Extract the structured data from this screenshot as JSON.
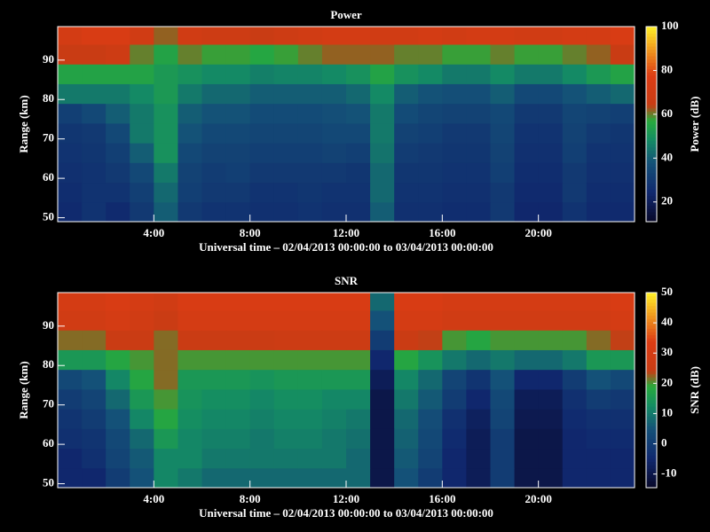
{
  "chart_data": [
    {
      "type": "heatmap",
      "title": "Power",
      "xlabel": "Universal time – 02/04/2013 00:00:00 to 03/04/2013 00:00:00",
      "ylabel": "Range (km)",
      "colorbar_label": "Power (dB)",
      "x": [
        0.5,
        1.5,
        2.5,
        3.5,
        4.5,
        5.5,
        6.5,
        7.5,
        8.5,
        9.5,
        10.5,
        11.5,
        12.5,
        13.5,
        14.5,
        15.5,
        16.5,
        17.5,
        18.5,
        19.5,
        20.5,
        21.5,
        22.5,
        23.5
      ],
      "y": [
        51.5,
        56.5,
        61.5,
        66.5,
        71.5,
        76.5,
        81.5,
        86.5,
        91.5,
        96.5
      ],
      "values": [
        [
          25,
          28,
          25,
          30,
          40,
          30,
          28,
          28,
          27,
          27,
          28,
          27,
          27,
          40,
          27,
          27,
          26,
          26,
          30,
          24,
          24,
          28,
          25,
          25
        ],
        [
          26,
          28,
          28,
          32,
          42,
          32,
          30,
          30,
          28,
          28,
          29,
          28,
          28,
          42,
          28,
          28,
          27,
          27,
          30,
          25,
          25,
          30,
          26,
          26
        ],
        [
          27,
          28,
          30,
          35,
          45,
          33,
          31,
          32,
          30,
          30,
          30,
          30,
          29,
          42,
          29,
          29,
          28,
          28,
          32,
          26,
          26,
          30,
          27,
          27
        ],
        [
          28,
          29,
          32,
          40,
          50,
          35,
          33,
          33,
          32,
          32,
          32,
          33,
          32,
          44,
          31,
          30,
          29,
          29,
          33,
          27,
          27,
          32,
          28,
          28
        ],
        [
          29,
          30,
          35,
          45,
          50,
          38,
          35,
          35,
          34,
          34,
          34,
          35,
          35,
          45,
          33,
          32,
          30,
          30,
          34,
          28,
          28,
          33,
          30,
          29
        ],
        [
          32,
          35,
          40,
          45,
          50,
          40,
          38,
          38,
          36,
          36,
          36,
          37,
          38,
          45,
          36,
          34,
          33,
          33,
          35,
          30,
          30,
          34,
          33,
          32
        ],
        [
          45,
          45,
          45,
          48,
          52,
          45,
          42,
          42,
          40,
          40,
          40,
          40,
          42,
          48,
          40,
          38,
          37,
          37,
          40,
          35,
          35,
          38,
          40,
          42
        ],
        [
          55,
          55,
          55,
          55,
          52,
          50,
          48,
          48,
          46,
          47,
          47,
          48,
          50,
          55,
          50,
          48,
          45,
          45,
          48,
          45,
          45,
          48,
          52,
          55
        ],
        [
          65,
          65,
          68,
          60,
          55,
          60,
          58,
          58,
          56,
          58,
          60,
          62,
          62,
          62,
          60,
          60,
          58,
          58,
          60,
          58,
          58,
          60,
          62,
          65
        ],
        [
          72,
          75,
          75,
          70,
          62,
          70,
          68,
          68,
          65,
          68,
          70,
          72,
          72,
          70,
          70,
          72,
          70,
          72,
          72,
          70,
          70,
          72,
          72,
          75
        ]
      ],
      "xlim": [
        0,
        24
      ],
      "ylim": [
        49,
        98.5
      ],
      "xticks": [
        {
          "value": 4,
          "label": "4:00"
        },
        {
          "value": 8,
          "label": "8:00"
        },
        {
          "value": 12,
          "label": "12:00"
        },
        {
          "value": 16,
          "label": "16:00"
        },
        {
          "value": 20,
          "label": "20:00"
        }
      ],
      "yticks": [
        50,
        60,
        70,
        80,
        90
      ],
      "zlim": [
        11,
        100
      ],
      "zticks": [
        20,
        40,
        60,
        80,
        100
      ]
    },
    {
      "type": "heatmap",
      "title": "SNR",
      "xlabel": "Universal time – 02/04/2013 00:00:00 to 03/04/2013 00:00:00",
      "ylabel": "Range (km)",
      "colorbar_label": "SNR (dB)",
      "x": [
        0.5,
        1.5,
        2.5,
        3.5,
        4.5,
        5.5,
        6.5,
        7.5,
        8.5,
        9.5,
        10.5,
        11.5,
        12.5,
        13.5,
        14.5,
        15.5,
        16.5,
        17.5,
        18.5,
        19.5,
        20.5,
        21.5,
        22.5,
        23.5
      ],
      "y": [
        51.5,
        56.5,
        61.5,
        66.5,
        71.5,
        76.5,
        81.5,
        86.5,
        91.5,
        96.5
      ],
      "values": [
        [
          -5,
          -5,
          0,
          5,
          12,
          10,
          8,
          8,
          8,
          8,
          8,
          8,
          8,
          -10,
          5,
          0,
          -5,
          -8,
          0,
          -10,
          -10,
          -5,
          -5,
          -5
        ],
        [
          -5,
          -3,
          2,
          6,
          12,
          12,
          10,
          10,
          10,
          10,
          10,
          10,
          8,
          -10,
          6,
          2,
          -5,
          -8,
          0,
          -10,
          -10,
          -5,
          -5,
          -5
        ],
        [
          -3,
          -2,
          3,
          8,
          15,
          12,
          11,
          11,
          10,
          11,
          11,
          10,
          9,
          -10,
          7,
          3,
          -4,
          -8,
          0,
          -10,
          -10,
          -5,
          -4,
          -4
        ],
        [
          -2,
          0,
          5,
          12,
          18,
          13,
          12,
          12,
          11,
          12,
          12,
          11,
          10,
          -10,
          8,
          4,
          -3,
          -7,
          2,
          -9,
          -9,
          -4,
          -3,
          -3
        ],
        [
          0,
          2,
          8,
          15,
          20,
          14,
          13,
          13,
          12,
          13,
          13,
          12,
          12,
          -10,
          10,
          6,
          0,
          -5,
          3,
          -8,
          -8,
          -3,
          0,
          -1
        ],
        [
          3,
          5,
          12,
          18,
          22,
          15,
          15,
          15,
          14,
          15,
          15,
          15,
          15,
          -8,
          12,
          8,
          2,
          -2,
          5,
          -5,
          -5,
          0,
          5,
          3
        ],
        [
          15,
          15,
          18,
          20,
          22,
          20,
          20,
          20,
          20,
          20,
          20,
          20,
          20,
          -5,
          18,
          14,
          10,
          8,
          10,
          8,
          8,
          10,
          15,
          15
        ],
        [
          22,
          22,
          25,
          25,
          22,
          25,
          25,
          25,
          25,
          26,
          26,
          26,
          26,
          0,
          25,
          24,
          20,
          18,
          20,
          20,
          20,
          20,
          22,
          24
        ],
        [
          28,
          28,
          30,
          28,
          25,
          30,
          30,
          30,
          30,
          30,
          30,
          30,
          30,
          5,
          30,
          30,
          28,
          28,
          28,
          28,
          28,
          28,
          28,
          30
        ],
        [
          30,
          30,
          32,
          30,
          28,
          32,
          32,
          32,
          32,
          32,
          32,
          32,
          32,
          8,
          32,
          32,
          30,
          30,
          30,
          30,
          30,
          30,
          30,
          32
        ]
      ],
      "xlim": [
        0,
        24
      ],
      "ylim": [
        49,
        98.5
      ],
      "xticks": [
        {
          "value": 4,
          "label": "4:00"
        },
        {
          "value": 8,
          "label": "8:00"
        },
        {
          "value": 12,
          "label": "12:00"
        },
        {
          "value": 16,
          "label": "16:00"
        },
        {
          "value": 20,
          "label": "20:00"
        }
      ],
      "yticks": [
        50,
        60,
        70,
        80,
        90
      ],
      "zlim": [
        -14.5,
        50
      ],
      "zticks": [
        -10,
        0,
        10,
        20,
        30,
        40,
        50
      ]
    }
  ]
}
